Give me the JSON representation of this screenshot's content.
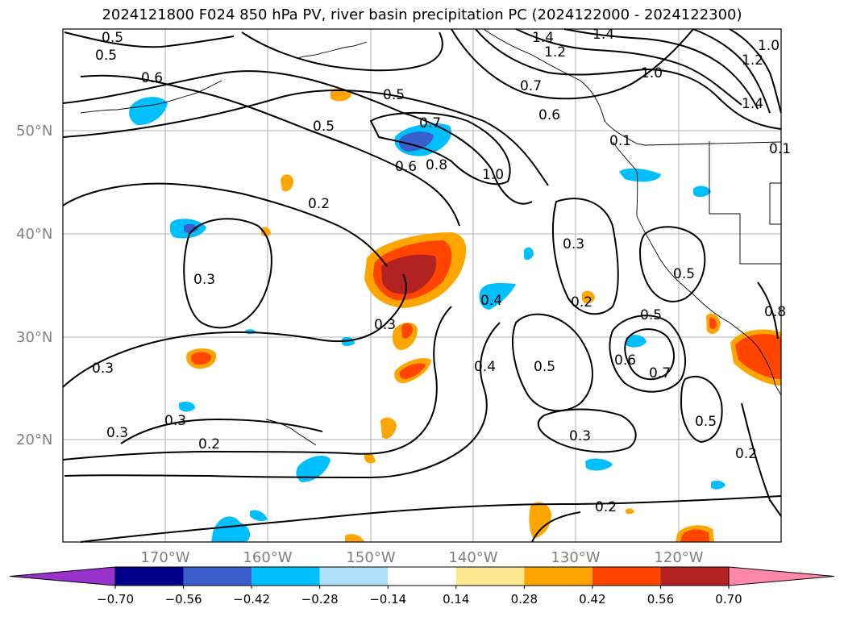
{
  "title": "2024121800 F024 850 hPa PV, river basin precipitation PC (2024122000 - 2024122300)",
  "lat_labels": [
    "50°N",
    "40°N",
    "30°N",
    "20°N"
  ],
  "lon_labels": [
    "170°W",
    "160°W",
    "150°W",
    "140°W",
    "130°W",
    "120°W"
  ],
  "contour_labels": [
    "0.5",
    "0.5",
    "0.6",
    "0.5",
    "0.5",
    "0.7",
    "0.6",
    "0.8",
    "1.0",
    "1.4",
    "1.4",
    "1.2",
    "1.2",
    "1.0",
    "1.0",
    "0.7",
    "0.6",
    "0.1",
    "1.4",
    "0.1",
    "0.2",
    "0.3",
    "0.3",
    "0.3",
    "0.4",
    "0.2",
    "0.4",
    "0.5",
    "0.5",
    "0.6",
    "0.7",
    "0.5",
    "0.5",
    "0.3",
    "0.3",
    "0.3",
    "0.3",
    "0.2",
    "0.2",
    "0.2",
    "0.8"
  ],
  "colorbar": {
    "ticks": [
      "−0.70",
      "−0.56",
      "−0.42",
      "−0.28",
      "−0.14",
      "0.14",
      "0.28",
      "0.42",
      "0.56",
      "0.70"
    ],
    "colors": [
      "#9932cc",
      "#00008b",
      "#3a5fcd",
      "#00bfff",
      "#aee0fa",
      "#ffffff",
      "#ffe990",
      "#ffa500",
      "#ff4500",
      "#b22222",
      "#ff88aa"
    ],
    "low_extend_color": "#9932cc",
    "high_extend_color": "#ff88aa"
  },
  "fill_colors": {
    "light_blue": "#00bfff",
    "mid_blue": "#3a5fcd",
    "yellow": "#ffe990",
    "orange": "#ffa500",
    "red_orange": "#ff4500",
    "dark_red": "#b22222"
  }
}
